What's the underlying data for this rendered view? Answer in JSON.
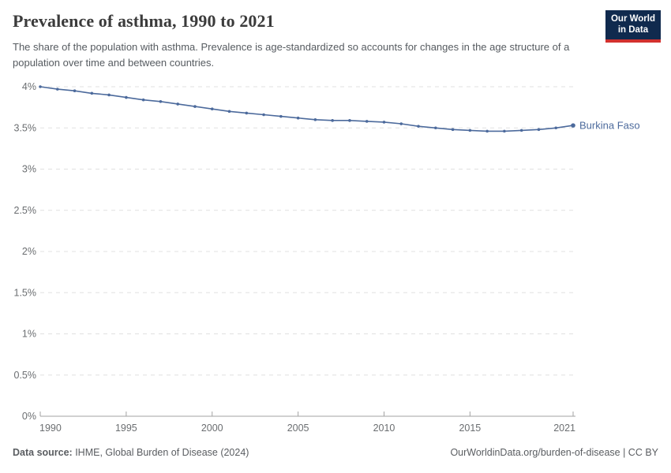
{
  "header": {
    "title": "Prevalence of asthma, 1990 to 2021",
    "subtitle": "The share of the population with asthma. Prevalence is age-standardized so accounts for changes in the age structure of a population over time and between countries.",
    "logo": {
      "line1": "Our World",
      "line2": "in Data",
      "bg_color": "#102a4e",
      "accent_color": "#d2312e"
    }
  },
  "chart_data": {
    "type": "line",
    "title": "Prevalence of asthma, 1990 to 2021",
    "xlabel": "",
    "ylabel": "",
    "xlim": [
      1990,
      2021
    ],
    "ylim": [
      0,
      4
    ],
    "grid": "horizontal-dashed",
    "legend_position": "end-of-line-label",
    "x_ticks": [
      1990,
      1995,
      2000,
      2005,
      2010,
      2015,
      2021
    ],
    "y_ticks": [
      0,
      0.5,
      1,
      1.5,
      2,
      2.5,
      3,
      3.5,
      4
    ],
    "y_tick_suffix": "%",
    "x": [
      1990,
      1991,
      1992,
      1993,
      1994,
      1995,
      1996,
      1997,
      1998,
      1999,
      2000,
      2001,
      2002,
      2003,
      2004,
      2005,
      2006,
      2007,
      2008,
      2009,
      2010,
      2011,
      2012,
      2013,
      2014,
      2015,
      2016,
      2017,
      2018,
      2019,
      2020,
      2021
    ],
    "series": [
      {
        "name": "Burkina Faso",
        "color": "#4c6a9c",
        "values": [
          4.0,
          3.97,
          3.95,
          3.92,
          3.9,
          3.87,
          3.84,
          3.82,
          3.79,
          3.76,
          3.73,
          3.7,
          3.68,
          3.66,
          3.64,
          3.62,
          3.6,
          3.59,
          3.59,
          3.58,
          3.57,
          3.55,
          3.52,
          3.5,
          3.48,
          3.47,
          3.46,
          3.46,
          3.47,
          3.48,
          3.5,
          3.53
        ]
      }
    ]
  },
  "footer": {
    "data_source_label": "Data source:",
    "data_source_value": " IHME, Global Burden of Disease (2024)",
    "url": "OurWorldinData.org/burden-of-disease",
    "separator": " | ",
    "license": "CC BY"
  },
  "colors": {
    "line": "#4c6a9c",
    "axis_text": "#6b6e71",
    "grid": "#e0e0e0",
    "axis_line": "#a3a3a3",
    "title": "#3b3b3b",
    "subtitle": "#565b60"
  }
}
